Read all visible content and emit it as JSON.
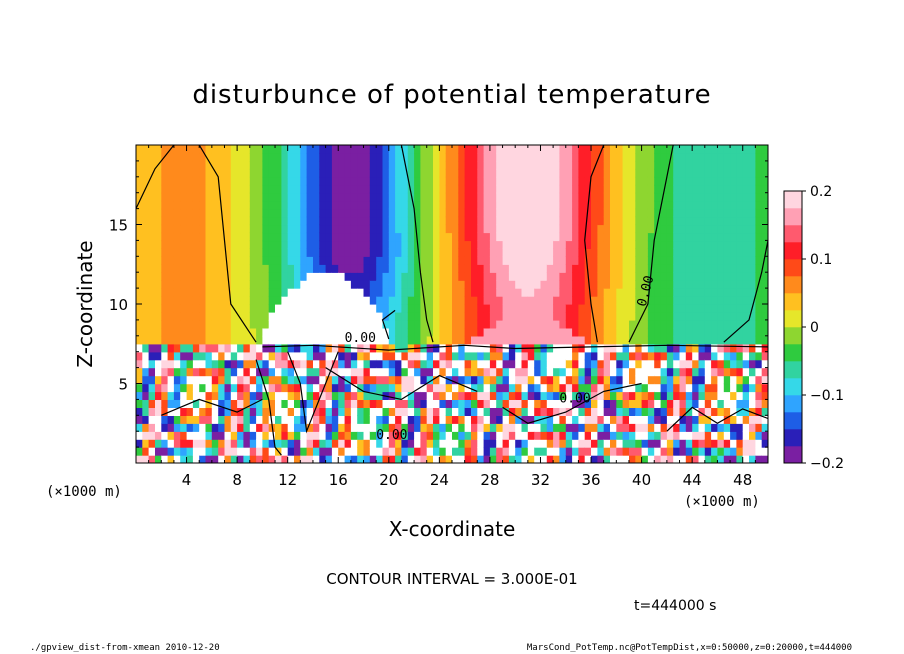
{
  "chart_data": {
    "type": "heatmap",
    "title": "disturbunce of potential temperature",
    "xlabel": "X-coordinate",
    "ylabel": "Z-coordinate",
    "x_unit_label": "(×1000 m)",
    "y_unit_label": "(×1000 m)",
    "xlim": [
      0,
      50
    ],
    "ylim": [
      0,
      20
    ],
    "x_ticks": [
      "4",
      "8",
      "12",
      "16",
      "20",
      "24",
      "28",
      "32",
      "36",
      "40",
      "44",
      "48"
    ],
    "y_ticks": [
      "5",
      "10",
      "15"
    ],
    "colorbar": {
      "range": [
        -0.2,
        0.2
      ],
      "ticks": [
        "0.2",
        "0.1",
        "0",
        "−0.1",
        "−0.2"
      ],
      "colors": [
        "#7a1fa2",
        "#2a1fb8",
        "#1e5ee6",
        "#2fa4ff",
        "#35d8e8",
        "#31d3a0",
        "#2fcb3f",
        "#8ed630",
        "#e6e62a",
        "#ffc020",
        "#ff8a1c",
        "#ff4a18",
        "#ff1e28",
        "#ff5a6e",
        "#ffa0b4",
        "#ffd6e0"
      ]
    },
    "contour_interval_text": "CONTOUR INTERVAL = 3.000E-01",
    "contour_labels": [
      "0.00",
      "0.00",
      "0.00",
      "0.00"
    ],
    "time_text": "t=444000 s"
  },
  "footer": {
    "left": "./gpview_dist-from-xmean 2010-12-20",
    "right": "MarsCond_PotTemp.nc@PotTempDist,x=0:50000,z=0:20000,t=444000"
  }
}
